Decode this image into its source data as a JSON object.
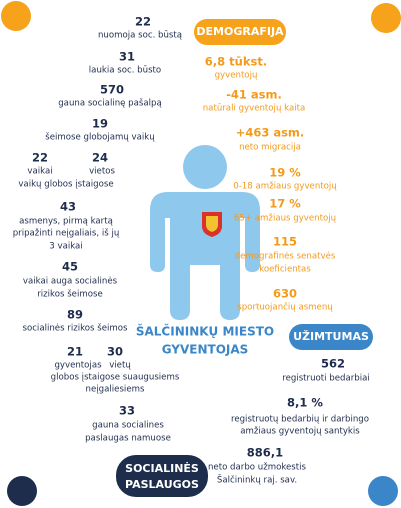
{
  "demografija": {
    "title": "DEMOGRAFIJA",
    "items": [
      {
        "value": "6,8 tūkst.",
        "label": [
          "gyventojų"
        ]
      },
      {
        "value": "-41 asm.",
        "label": [
          "natūrali gyventojų kaita"
        ]
      },
      {
        "value": "+463 asm.",
        "label": [
          "neto migracija"
        ]
      },
      {
        "value": "19 %",
        "label": [
          "0-18 amžiaus gyventojų"
        ]
      },
      {
        "value": "17 %",
        "label": [
          "65+ amžiaus gyventojų"
        ]
      },
      {
        "value": "115",
        "label": [
          "demografinės senatvės",
          "koeficientas"
        ]
      },
      {
        "value": "630",
        "label": [
          "sportuojančių asmenų"
        ]
      }
    ]
  },
  "uzimtumas": {
    "title": "UŽIMTUMAS",
    "items": [
      {
        "value": "562",
        "label": [
          "registruoti bedarbiai"
        ]
      },
      {
        "value": "8,1 %",
        "label": [
          "registruotų bedarbių ir darbingo",
          "amžiaus gyventojų santykis"
        ]
      },
      {
        "value": "886,1",
        "label": [
          "neto darbo užmokestis",
          "Šalčininkų raj. sav."
        ]
      }
    ]
  },
  "socialines_paslaugos": {
    "title": [
      "SOCIALINĖS",
      "PASLAUGOS"
    ],
    "items": [
      {
        "value": "22",
        "label": [
          "nuomoja soc. būstą"
        ]
      },
      {
        "value": "31",
        "label": [
          "laukia soc. būsto"
        ]
      },
      {
        "value": "570",
        "label": [
          "gauna socialinę pašalpą"
        ]
      },
      {
        "value": "19",
        "label": [
          "šeimose globojamų vaikų"
        ]
      },
      {
        "pairs": [
          {
            "value": "22",
            "label": "vaikai"
          },
          {
            "value": "24",
            "label": "vietos"
          }
        ],
        "label": [
          "vaikų globos įstaigose"
        ]
      },
      {
        "value": "43",
        "label": [
          "asmenys, pirmą kartą",
          "pripažinti neįgaliais, iš jų",
          "3 vaikai"
        ]
      },
      {
        "value": "45",
        "label": [
          "vaikai auga socialinės",
          "rizikos šeimose"
        ]
      },
      {
        "value": "89",
        "label": [
          "socialinės rizikos šeimos"
        ]
      },
      {
        "pairs": [
          {
            "value": "21",
            "label": "gyventojas"
          },
          {
            "value": "30",
            "label": "vietų"
          }
        ],
        "label": [
          "globos įstaigose suaugusiems",
          "neįgaliesiems"
        ]
      },
      {
        "value": "33",
        "label": [
          "gauna socialines",
          "paslaugas namuose"
        ]
      }
    ]
  },
  "center": {
    "label": [
      "ŠALČININKŲ MIESTO",
      "GYVENTOJAS"
    ]
  }
}
